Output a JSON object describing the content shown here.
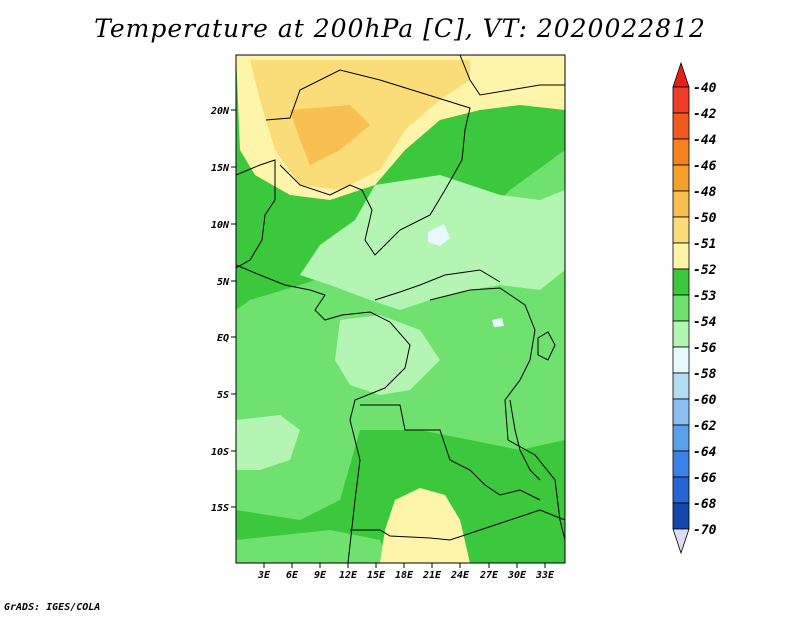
{
  "title": "Temperature at 200hPa [C], VT: 2020022812",
  "credit": "GrADS: IGES/COLA",
  "map": {
    "lat_labels": [
      "20N",
      "15N",
      "10N",
      "5N",
      "EQ",
      "5S",
      "10S",
      "15S"
    ],
    "lon_labels": [
      "3E",
      "6E",
      "9E",
      "12E",
      "15E",
      "18E",
      "21E",
      "24E",
      "27E",
      "30E",
      "33E"
    ]
  },
  "legend": {
    "items": [
      {
        "label": "-40",
        "color": "#f03c28"
      },
      {
        "label": "-42",
        "color": "#f05a1e"
      },
      {
        "label": "-44",
        "color": "#f5821e"
      },
      {
        "label": "-46",
        "color": "#f5a02d"
      },
      {
        "label": "-48",
        "color": "#f8c050"
      },
      {
        "label": "-50",
        "color": "#fadc78"
      },
      {
        "label": "-51",
        "color": "#fff5aa"
      },
      {
        "label": "-52",
        "color": "#3cc83c"
      },
      {
        "label": "-53",
        "color": "#6ee16e"
      },
      {
        "label": "-54",
        "color": "#b4f5b4"
      },
      {
        "label": "-56",
        "color": "#e6faff"
      },
      {
        "label": "-58",
        "color": "#b4dcf5"
      },
      {
        "label": "-60",
        "color": "#8cc0f0"
      },
      {
        "label": "-62",
        "color": "#5aa0eb"
      },
      {
        "label": "-64",
        "color": "#3c82e6"
      },
      {
        "label": "-66",
        "color": "#2864d2"
      },
      {
        "label": "-68",
        "color": "#1446aa"
      },
      {
        "label": "-70",
        "color": "#0a1e78"
      }
    ],
    "top_arrow_color": "#e61e14",
    "bottom_arrow_color": "#dcdcf5"
  }
}
